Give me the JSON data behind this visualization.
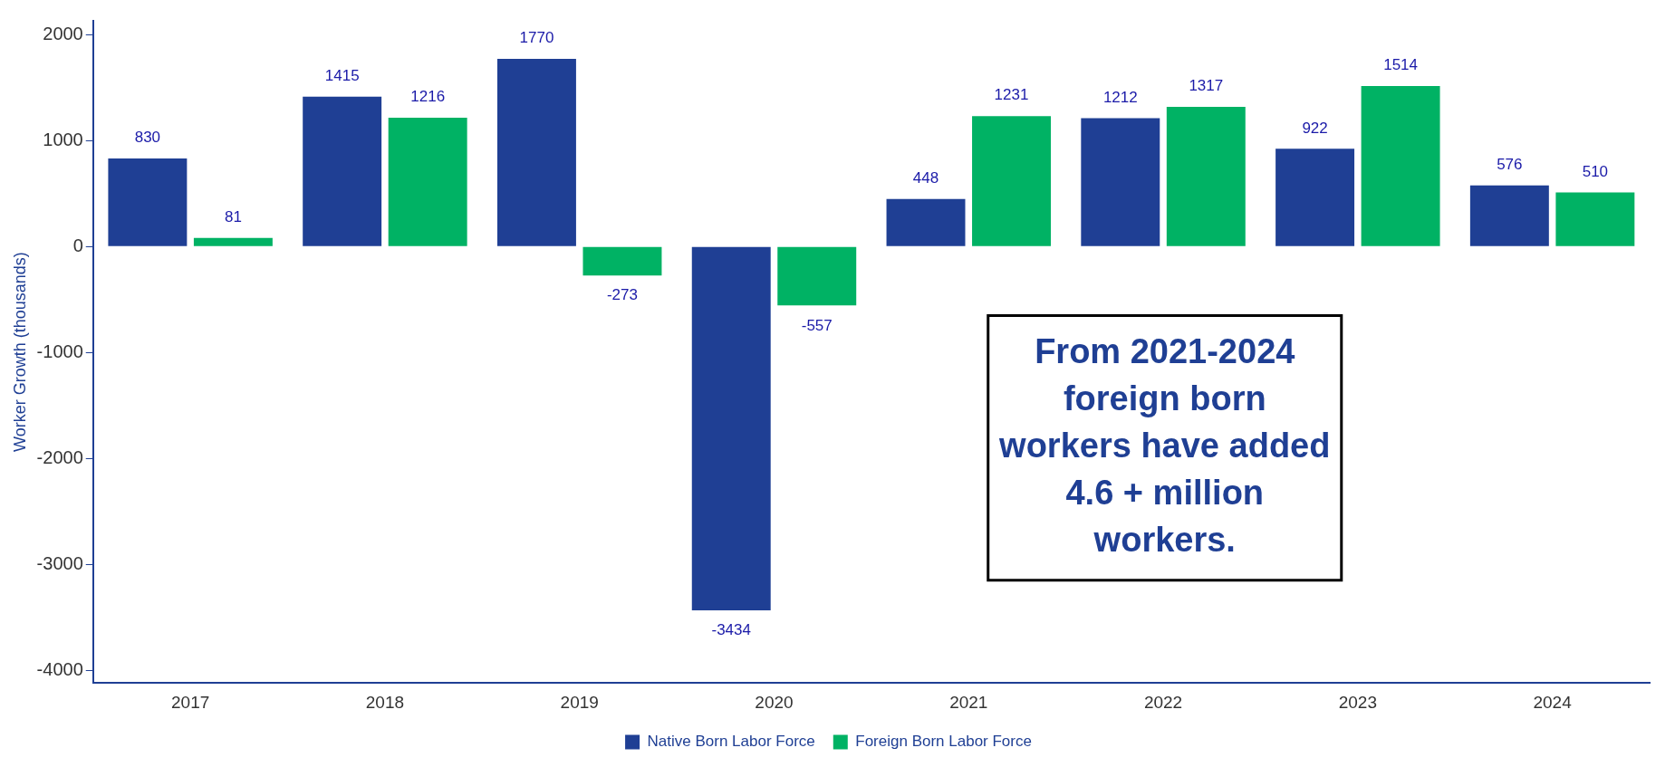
{
  "chart_data": {
    "type": "bar",
    "ylabel": "Worker Growth (thousands)",
    "categories": [
      "2017",
      "2018",
      "2019",
      "2020",
      "2021",
      "2022",
      "2023",
      "2024"
    ],
    "series": [
      {
        "name": "Native Born Labor Force",
        "color": "#1f3f94",
        "values": [
          830,
          1415,
          1770,
          -3434,
          448,
          1212,
          922,
          576
        ]
      },
      {
        "name": "Foreign Born Labor Force",
        "color": "#00b264",
        "values": [
          81,
          1216,
          -273,
          -557,
          1231,
          1317,
          1514,
          510
        ]
      }
    ],
    "ylim": [
      -4120,
      2130
    ],
    "yticks": [
      -4000,
      -3000,
      -2000,
      -1000,
      0,
      1000,
      2000
    ],
    "grid": false,
    "legend": "bottom",
    "data_labels": true,
    "annotations": [
      "From 2021-2024 foreign born workers have added 4.6 + million workers."
    ]
  }
}
